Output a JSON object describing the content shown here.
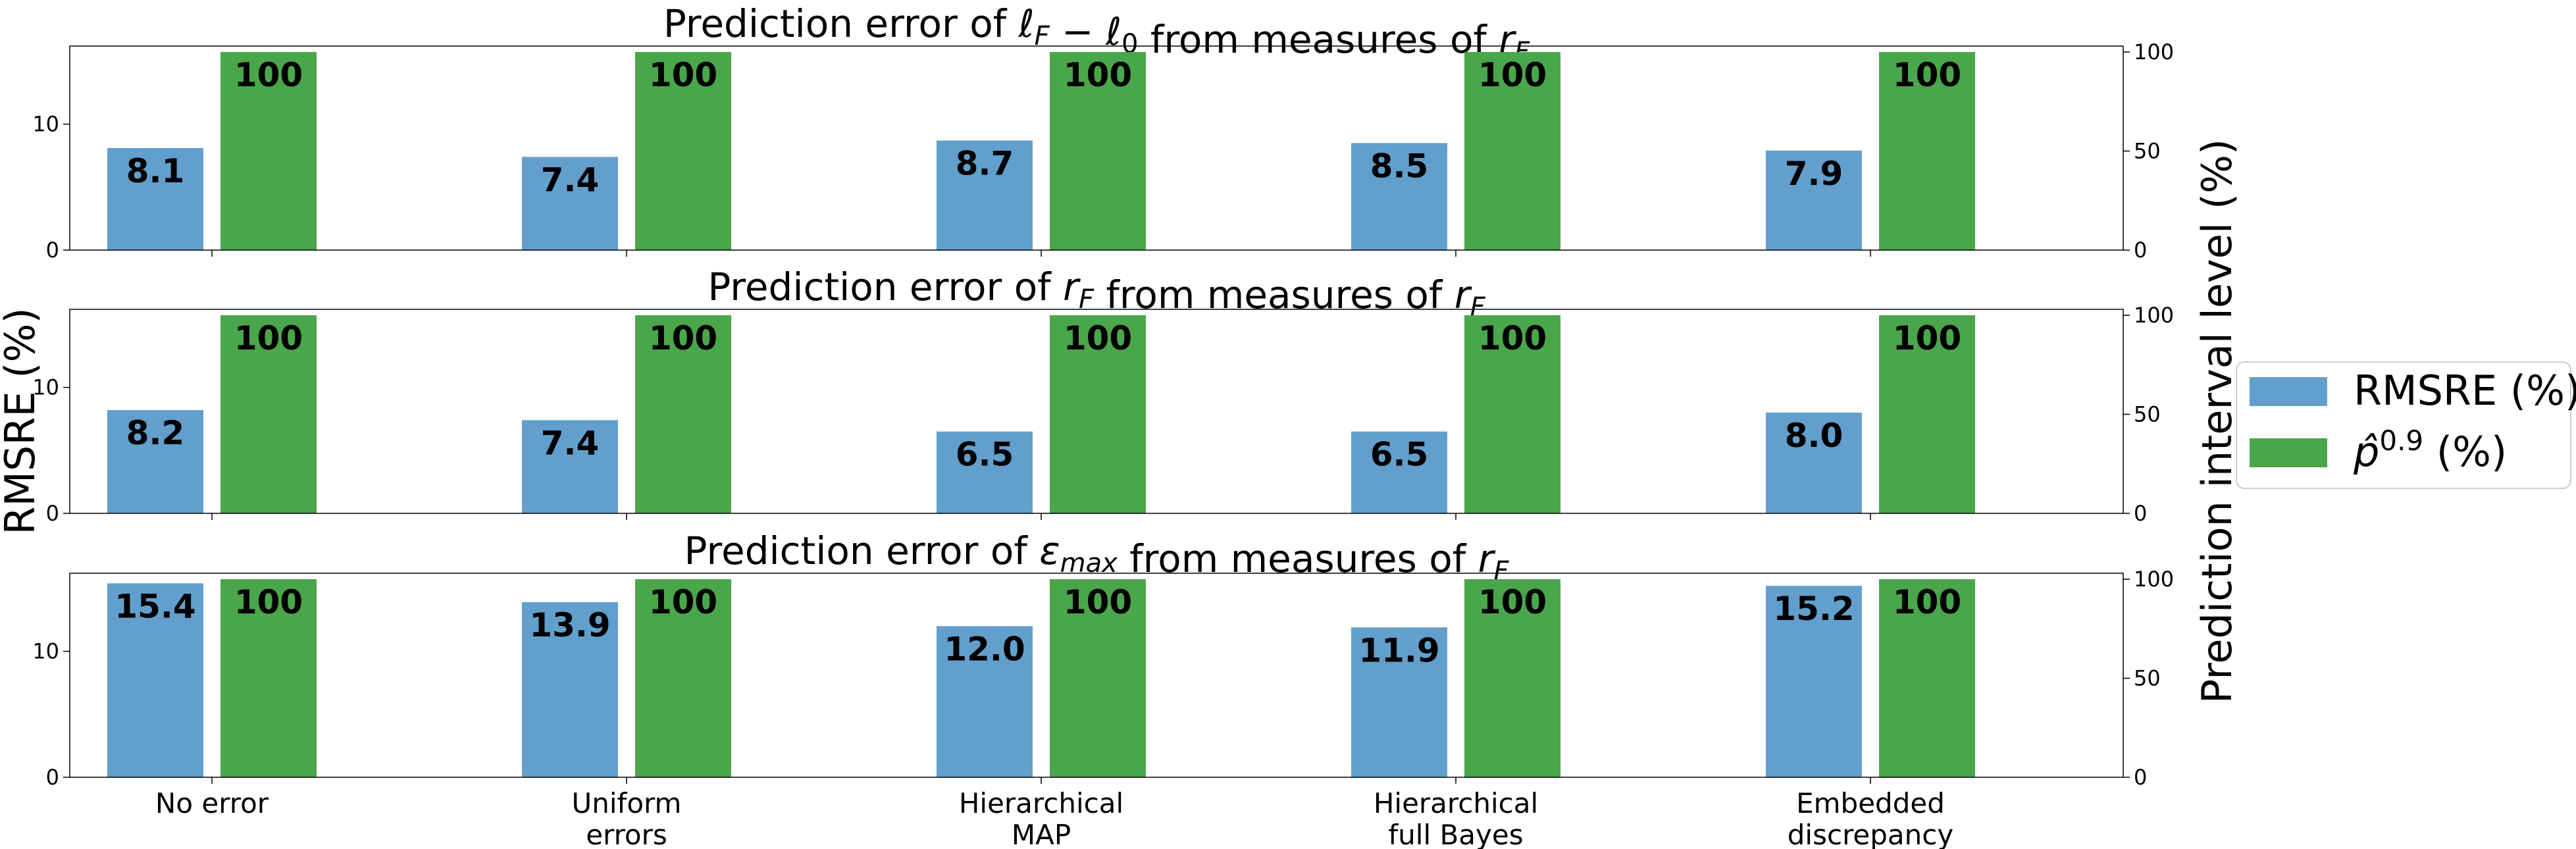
{
  "chart_data": {
    "type": "bar",
    "categories": [
      [
        "No error"
      ],
      [
        "Uniform",
        "errors"
      ],
      [
        "Hierarchical",
        "MAP"
      ],
      [
        "Hierarchical",
        "full Bayes"
      ],
      [
        "Embedded",
        "discrepancy"
      ]
    ],
    "ylabel_left": "RMSRE (%)",
    "ylabel_right": "Prediction interval level (%)",
    "left_ylim": [
      0,
      16.2
    ],
    "left_ticks": [
      0,
      10
    ],
    "right_ylim": [
      0,
      103
    ],
    "right_ticks": [
      0,
      50,
      100
    ],
    "legend": {
      "placement": "right",
      "entries": [
        {
          "label": "RMSRE (%)",
          "color": "#629fcd"
        },
        {
          "label": "p̂^0.9 (%)",
          "text": "p̂",
          "sup": "0.9",
          "suffix": " (%)",
          "color": "#4aa64a"
        }
      ]
    },
    "panels": [
      {
        "title_parts": [
          {
            "t": "Prediction error of "
          },
          {
            "t": "ℓ",
            "i": true
          },
          {
            "t": "F",
            "i": true,
            "sub": true
          },
          {
            "t": " − "
          },
          {
            "t": "ℓ",
            "i": true
          },
          {
            "t": "0",
            "sub": true
          },
          {
            "t": " from measures of "
          },
          {
            "t": "r",
            "i": true
          },
          {
            "t": "F",
            "i": true,
            "sub": true
          }
        ],
        "series": [
          {
            "name": "RMSRE (%)",
            "axis": "left",
            "values": [
              8.1,
              7.4,
              8.7,
              8.5,
              7.9
            ],
            "labels": [
              "8.1",
              "7.4",
              "8.7",
              "8.5",
              "7.9"
            ]
          },
          {
            "name": "p̂^0.9 (%)",
            "axis": "right",
            "values": [
              100,
              100,
              100,
              100,
              100
            ],
            "labels": [
              "100",
              "100",
              "100",
              "100",
              "100"
            ]
          }
        ]
      },
      {
        "title_parts": [
          {
            "t": "Prediction error of "
          },
          {
            "t": "r",
            "i": true
          },
          {
            "t": "F",
            "i": true,
            "sub": true
          },
          {
            "t": " from measures of "
          },
          {
            "t": "r",
            "i": true
          },
          {
            "t": "F",
            "i": true,
            "sub": true
          }
        ],
        "series": [
          {
            "name": "RMSRE (%)",
            "axis": "left",
            "values": [
              8.2,
              7.4,
              6.5,
              6.5,
              8.0
            ],
            "labels": [
              "8.2",
              "7.4",
              "6.5",
              "6.5",
              "8.0"
            ]
          },
          {
            "name": "p̂^0.9 (%)",
            "axis": "right",
            "values": [
              100,
              100,
              100,
              100,
              100
            ],
            "labels": [
              "100",
              "100",
              "100",
              "100",
              "100"
            ]
          }
        ]
      },
      {
        "title_parts": [
          {
            "t": "Prediction error of "
          },
          {
            "t": "ε",
            "i": true
          },
          {
            "t": "max",
            "i": true,
            "sub": true
          },
          {
            "t": " from measures of "
          },
          {
            "t": "r",
            "i": true
          },
          {
            "t": "F",
            "i": true,
            "sub": true
          }
        ],
        "series": [
          {
            "name": "RMSRE (%)",
            "axis": "left",
            "values": [
              15.4,
              13.9,
              12.0,
              11.9,
              15.2
            ],
            "labels": [
              "15.4",
              "13.9",
              "12.0",
              "11.9",
              "15.2"
            ]
          },
          {
            "name": "p̂^0.9 (%)",
            "axis": "right",
            "values": [
              100,
              100,
              100,
              100,
              100
            ],
            "labels": [
              "100",
              "100",
              "100",
              "100",
              "100"
            ]
          }
        ]
      }
    ]
  }
}
